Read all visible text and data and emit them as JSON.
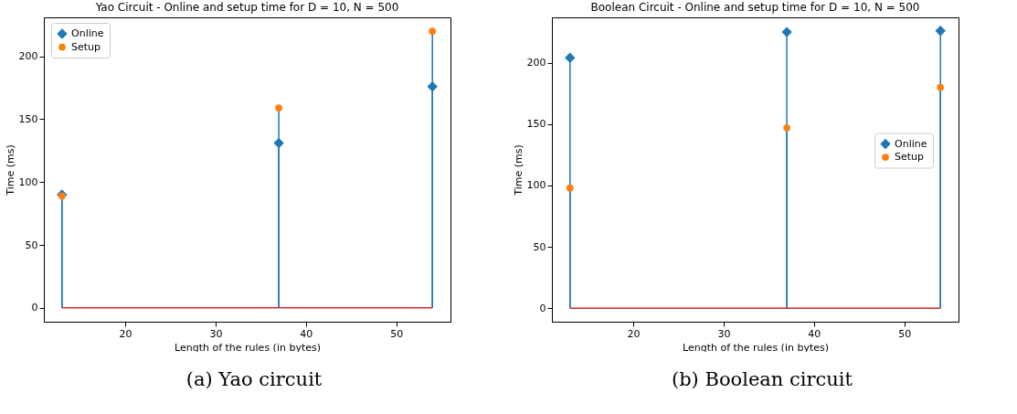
{
  "chart_data": [
    {
      "type": "lollipop",
      "title": "Yao Circuit - Online and setup time for D = 10, N = 500",
      "xlabel": "Length of the rules (in bytes)",
      "ylabel": "Time (ms)",
      "annotations": [
        "(a) Yao circuit"
      ],
      "x": [
        13,
        37,
        54
      ],
      "series": [
        {
          "name": "Online",
          "color": "#1f77b4",
          "marker": "diamond",
          "values": [
            90,
            131,
            176
          ]
        },
        {
          "name": "Setup",
          "color": "#ff7f0e",
          "marker": "circle",
          "values": [
            89,
            159,
            220
          ]
        }
      ],
      "ref_lines": [
        {
          "axis": "y",
          "value": 0,
          "color": "#d62728"
        }
      ],
      "xlim": [
        11,
        56
      ],
      "xticks": [
        20,
        30,
        40,
        50
      ],
      "ylim": [
        -11,
        231
      ],
      "yticks": [
        0,
        50,
        100,
        150,
        200
      ],
      "grid": false,
      "legend": "top left"
    },
    {
      "type": "lollipop",
      "title": "Boolean Circuit - Online and setup time for D = 10, N = 500",
      "xlabel": "Length of the rules (in bytes)",
      "ylabel": "Time (ms)",
      "annotations": [
        "(b) Boolean circuit"
      ],
      "x": [
        13,
        37,
        54
      ],
      "series": [
        {
          "name": "Online",
          "color": "#1f77b4",
          "marker": "diamond",
          "values": [
            204,
            225,
            226
          ]
        },
        {
          "name": "Setup",
          "color": "#ff7f0e",
          "marker": "circle",
          "values": [
            98,
            147,
            180
          ]
        }
      ],
      "ref_lines": [
        {
          "axis": "y",
          "value": 0,
          "color": "#d62728"
        }
      ],
      "xlim": [
        11,
        56
      ],
      "xticks": [
        20,
        30,
        40,
        50
      ],
      "ylim": [
        -11,
        237
      ],
      "yticks": [
        0,
        50,
        100,
        150,
        200
      ],
      "grid": false,
      "legend": "right"
    }
  ]
}
